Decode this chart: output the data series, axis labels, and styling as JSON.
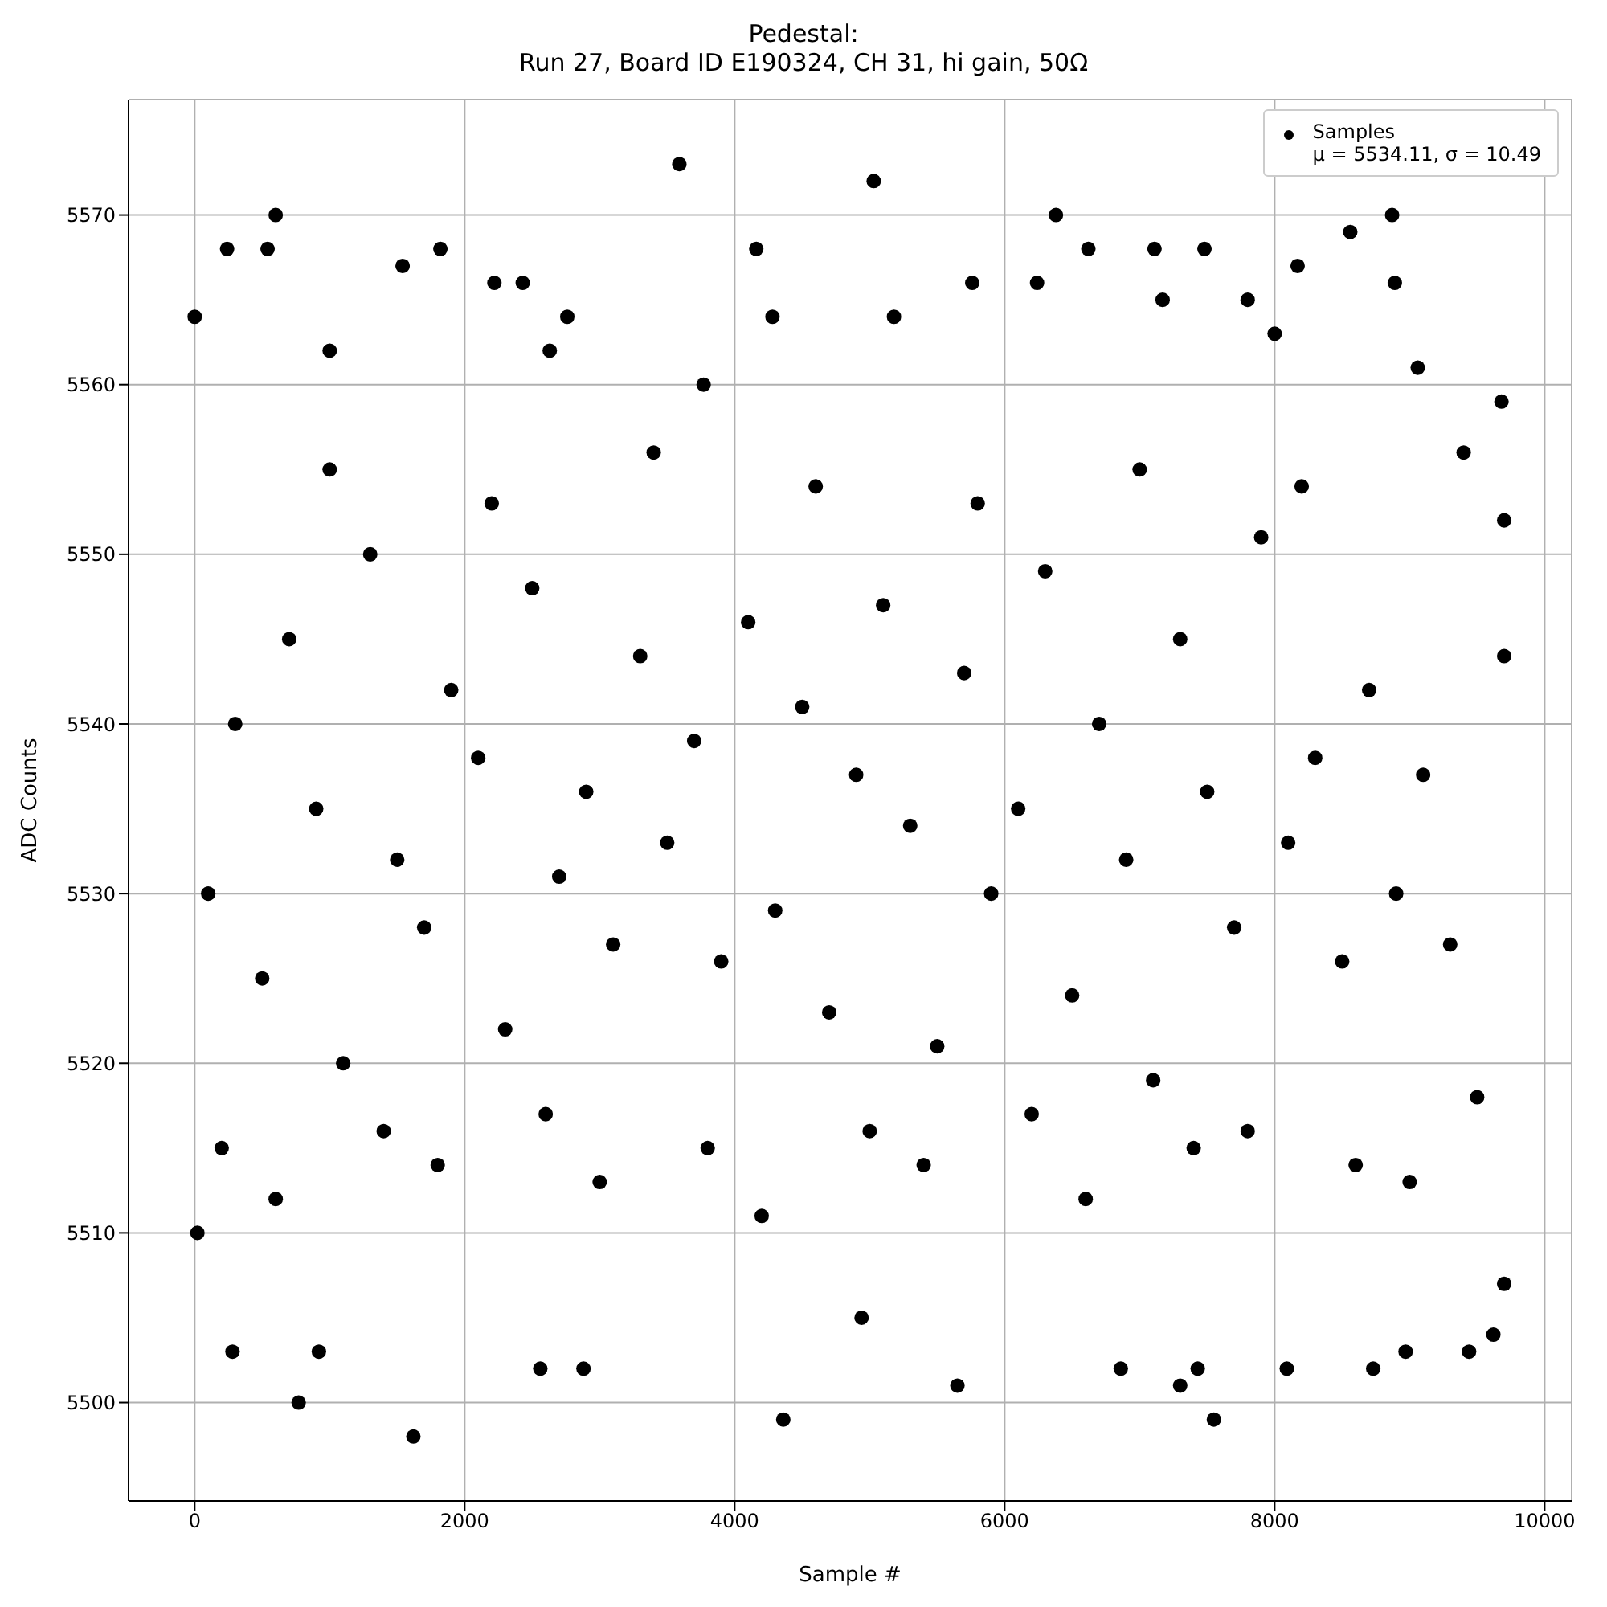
{
  "chart_data": {
    "type": "scatter",
    "title": "Pedestal:\nRun 27, Board ID E190324, CH 31, hi gain, 50Ω",
    "xlabel": "Sample #",
    "ylabel": "ADC Counts",
    "xlim": [
      -490,
      10200
    ],
    "xticks": [
      0,
      2000,
      4000,
      6000,
      8000,
      10000
    ],
    "ylim": [
      5494.2,
      5576.8
    ],
    "yticks": [
      5500,
      5510,
      5520,
      5530,
      5540,
      5550,
      5560,
      5570
    ],
    "grid": true,
    "legend": "top right",
    "marker": "circle",
    "series": [
      {
        "name": "Samples\nμ = 5534.11, σ = 10.49",
        "color": "#000000",
        "x": [
          0,
          240,
          540,
          600,
          770,
          1620,
          1540,
          1820,
          3590,
          5030,
          4160,
          4360,
          5650,
          6380,
          6620,
          7110,
          7480,
          7550,
          8170,
          8560,
          8870,
          8890,
          280,
          920,
          2560,
          2880,
          4940,
          6860,
          7300,
          7430,
          8090,
          8730,
          8970,
          9440,
          9620,
          9700,
          20,
          2220,
          2430,
          2760,
          4280,
          5180,
          5760,
          6240,
          7170,
          7800,
          8000,
          9060,
          9680,
          1000,
          3770,
          2630,
          100,
          300,
          500,
          700,
          900,
          1100,
          1300,
          1500,
          1700,
          1900,
          2100,
          2300,
          2500,
          2700,
          2900,
          3100,
          3300,
          3500,
          3700,
          3900,
          4100,
          4300,
          4500,
          4700,
          4900,
          5100,
          5300,
          5500,
          5700,
          5900,
          6100,
          6300,
          6500,
          6700,
          6900,
          7100,
          7300,
          7500,
          7700,
          7900,
          8100,
          8300,
          8500,
          8700,
          8900,
          9100,
          9300,
          9500,
          9700,
          200,
          600,
          1000,
          1400,
          1800,
          2200,
          2600,
          3000,
          3400,
          3800,
          4200,
          4600,
          5000,
          5400,
          5800,
          6200,
          6600,
          7000,
          7400,
          7800,
          8200,
          8600,
          9000,
          9400,
          9700
        ],
        "values": [
          5564,
          5568,
          5568,
          5570,
          5500,
          5498,
          5567,
          5568,
          5573,
          5572,
          5568,
          5499,
          5501,
          5570,
          5568,
          5568,
          5568,
          5499,
          5567,
          5569,
          5570,
          5566,
          5503,
          5503,
          5502,
          5502,
          5505,
          5502,
          5501,
          5502,
          5502,
          5502,
          5503,
          5503,
          5504,
          5507,
          5510,
          5566,
          5566,
          5564,
          5564,
          5564,
          5566,
          5566,
          5565,
          5565,
          5563,
          5561,
          5559,
          5562,
          5560,
          5562,
          5530,
          5540,
          5525,
          5545,
          5535,
          5520,
          5550,
          5532,
          5528,
          5542,
          5538,
          5522,
          5548,
          5531,
          5536,
          5527,
          5544,
          5533,
          5539,
          5526,
          5546,
          5529,
          5541,
          5523,
          5537,
          5547,
          5534,
          5521,
          5543,
          5530,
          5535,
          5549,
          5524,
          5540,
          5532,
          5519,
          5545,
          5536,
          5528,
          5551,
          5533,
          5538,
          5526,
          5542,
          5530,
          5537,
          5527,
          5518,
          5552,
          5515,
          5512,
          5555,
          5516,
          5514,
          5553,
          5517,
          5513,
          5556,
          5515,
          5511,
          5554,
          5516,
          5514,
          5553,
          5517,
          5512,
          5555,
          5515,
          5516,
          5554,
          5514,
          5513,
          5556,
          5544
        ]
      }
    ]
  }
}
